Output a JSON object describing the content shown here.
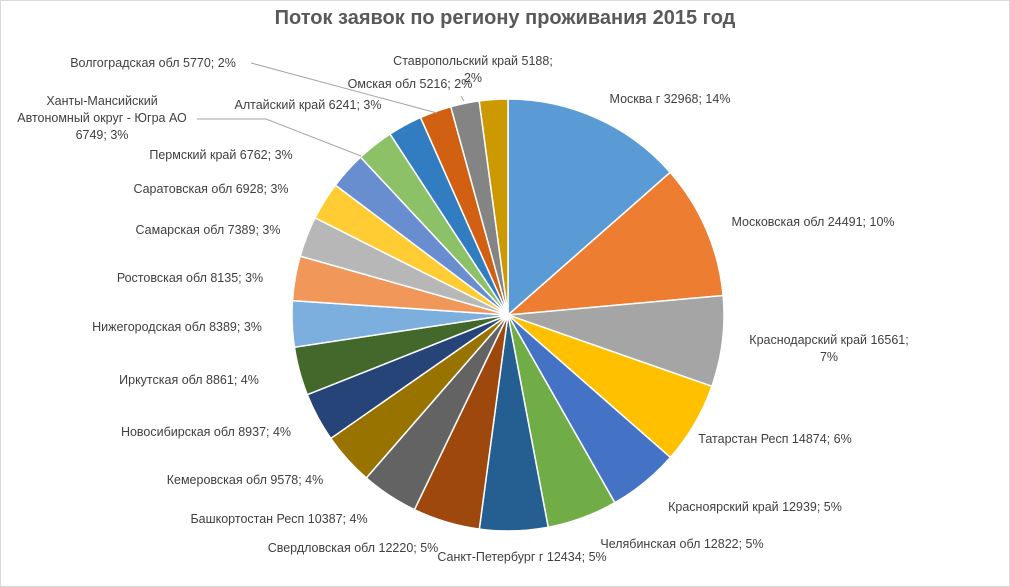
{
  "chart_data": {
    "type": "pie",
    "title": "Поток заявок по региону проживания 2015 год",
    "slices": [
      {
        "name": "Москва г",
        "value": 32968,
        "percent": "14%",
        "color": "#5b9bd5",
        "label_lines": [
          "Москва г 32968; 14%"
        ]
      },
      {
        "name": "Московская обл",
        "value": 24491,
        "percent": "10%",
        "color": "#ed7d31",
        "label_lines": [
          "Московская обл 24491; 10%"
        ]
      },
      {
        "name": "Краснодарский край",
        "value": 16561,
        "percent": "7%",
        "color": "#a5a5a5",
        "label_lines": [
          "Краснодарский край 16561;",
          "7%"
        ]
      },
      {
        "name": "Татарстан Респ",
        "value": 14874,
        "percent": "6%",
        "color": "#ffc000",
        "label_lines": [
          "Татарстан Респ 14874; 6%"
        ]
      },
      {
        "name": "Красноярский край",
        "value": 12939,
        "percent": "5%",
        "color": "#4472c4",
        "label_lines": [
          "Красноярский край 12939; 5%"
        ]
      },
      {
        "name": "Челябинская обл",
        "value": 12822,
        "percent": "5%",
        "color": "#70ad47",
        "label_lines": [
          "Челябинская обл 12822; 5%"
        ]
      },
      {
        "name": "Санкт-Петербург г",
        "value": 12434,
        "percent": "5%",
        "color": "#255e91",
        "label_lines": [
          "Санкт-Петербург г 12434; 5%"
        ]
      },
      {
        "name": "Свердловская обл",
        "value": 12220,
        "percent": "5%",
        "color": "#9e480e",
        "label_lines": [
          "Свердловская обл 12220; 5%"
        ]
      },
      {
        "name": "Башкортостан Респ",
        "value": 10387,
        "percent": "4%",
        "color": "#636363",
        "label_lines": [
          "Башкортостан Респ 10387; 4%"
        ]
      },
      {
        "name": "Кемеровская обл",
        "value": 9578,
        "percent": "4%",
        "color": "#997300",
        "label_lines": [
          "Кемеровская обл 9578; 4%"
        ]
      },
      {
        "name": "Новосибирская обл",
        "value": 8937,
        "percent": "4%",
        "color": "#264478",
        "label_lines": [
          "Новосибирская обл 8937; 4%"
        ]
      },
      {
        "name": "Иркутская обл",
        "value": 8861,
        "percent": "4%",
        "color": "#43682b",
        "label_lines": [
          "Иркутская обл 8861; 4%"
        ]
      },
      {
        "name": "Нижегородская обл",
        "value": 8389,
        "percent": "3%",
        "color": "#7cafdd",
        "label_lines": [
          "Нижегородская обл 8389; 3%"
        ]
      },
      {
        "name": "Ростовская обл",
        "value": 8135,
        "percent": "3%",
        "color": "#f1975a",
        "label_lines": [
          "Ростовская обл 8135; 3%"
        ]
      },
      {
        "name": "Самарская обл",
        "value": 7389,
        "percent": "3%",
        "color": "#b7b7b7",
        "label_lines": [
          "Самарская обл 7389; 3%"
        ]
      },
      {
        "name": "Саратовская обл",
        "value": 6928,
        "percent": "3%",
        "color": "#ffcd33",
        "label_lines": [
          "Саратовская обл 6928; 3%"
        ]
      },
      {
        "name": "Пермский край",
        "value": 6762,
        "percent": "3%",
        "color": "#698ed0",
        "label_lines": [
          "Пермский край 6762; 3%"
        ]
      },
      {
        "name": "Ханты-Мансийский Автономный округ - Югра АО",
        "value": 6749,
        "percent": "3%",
        "color": "#8cc168",
        "label_lines": [
          "Ханты-Мансийский",
          "Автономный округ - Югра АО",
          "6749; 3%"
        ]
      },
      {
        "name": "Алтайский край",
        "value": 6241,
        "percent": "3%",
        "color": "#327dc2",
        "label_lines": [
          "Алтайский край 6241; 3%"
        ]
      },
      {
        "name": "Волгоградская обл",
        "value": 5770,
        "percent": "2%",
        "color": "#d26012",
        "label_lines": [
          "Волгоградская обл 5770; 2%"
        ]
      },
      {
        "name": "Омская обл",
        "value": 5216,
        "percent": "2%",
        "color": "#848484",
        "label_lines": [
          "Омская обл 5216; 2%"
        ]
      },
      {
        "name": "Ставропольский край",
        "value": 5188,
        "percent": "2%",
        "color": "#cc9a00",
        "label_lines": [
          "Ставропольский край 5188;",
          "2%"
        ]
      }
    ],
    "legend": "none"
  }
}
